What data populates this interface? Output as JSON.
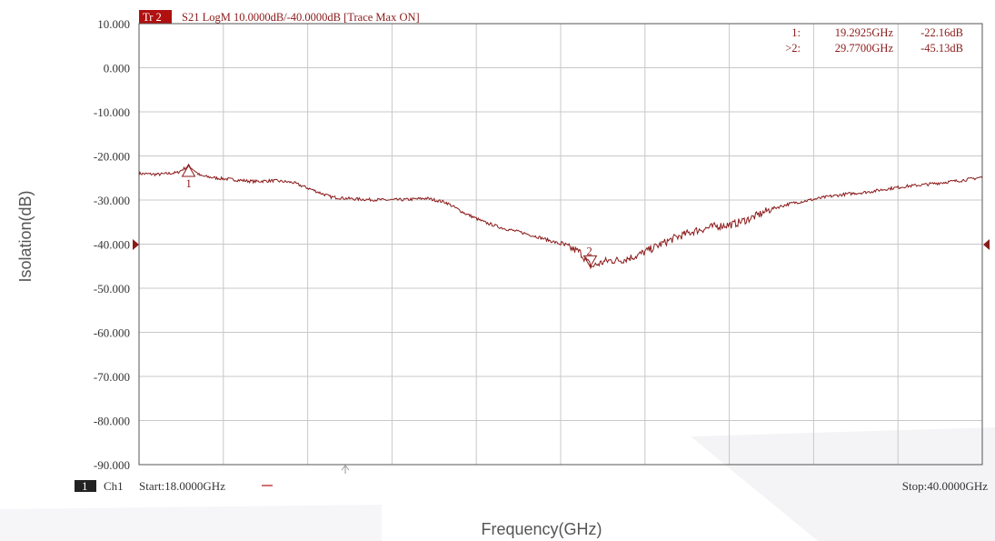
{
  "header": {
    "tr_badge": "Tr 2",
    "trace_info": "S21 LogM 10.0000dB/-40.0000dB  [Trace Max ON]"
  },
  "markers": [
    {
      "label": "1:",
      "freq": "19.2925GHz",
      "value": "-22.16dB"
    },
    {
      "label": ">2:",
      "freq": "29.7700GHz",
      "value": "-45.13dB"
    }
  ],
  "footer": {
    "ch_badge": "1",
    "ch_label": "Ch1",
    "start": "Start:18.0000GHz",
    "stop": "Stop:40.0000GHz"
  },
  "marker_tags": [
    "1",
    "2"
  ],
  "colors": {
    "trace": "#8b1a1a",
    "grid": "#c8c8c8",
    "badge": "#b01010",
    "frame": "#555555"
  },
  "chart_data": {
    "type": "line",
    "title": "",
    "xlabel": "Frequency(GHz)",
    "ylabel": "Isolation(dB)",
    "xlim": [
      18.0,
      40.0
    ],
    "ylim": [
      -90,
      10
    ],
    "ytick_labels": [
      "10.000",
      "0.000",
      "-10.000",
      "-20.000",
      "-30.000",
      "-40.000",
      "-50.000",
      "-60.000",
      "-70.000",
      "-80.000",
      "-90.000"
    ],
    "grid": true,
    "series": [
      {
        "x": [
          18.0,
          18.5,
          19.0,
          19.3,
          19.6,
          20.0,
          20.5,
          21.0,
          21.5,
          22.0,
          22.5,
          23.0,
          23.5,
          24.0,
          24.5,
          25.0,
          25.5,
          26.0,
          26.5,
          27.0,
          27.5,
          28.0,
          28.5,
          29.0,
          29.5,
          29.8,
          30.2,
          30.6,
          31.0,
          31.5,
          32.0,
          32.5,
          33.0,
          33.5,
          34.0,
          34.5,
          35.0,
          35.5,
          36.0,
          36.5,
          37.0,
          37.5,
          38.0,
          38.5,
          39.0,
          39.5,
          40.0
        ],
        "values": [
          -24.0,
          -24.2,
          -23.8,
          -22.2,
          -24.5,
          -25.0,
          -25.4,
          -25.8,
          -25.6,
          -26.0,
          -27.6,
          -29.3,
          -29.7,
          -29.9,
          -30.0,
          -29.9,
          -29.6,
          -30.5,
          -33.0,
          -35.0,
          -36.4,
          -37.4,
          -38.6,
          -40.0,
          -41.8,
          -45.1,
          -43.8,
          -43.6,
          -42.6,
          -40.5,
          -38.5,
          -37.0,
          -36.0,
          -35.5,
          -34.0,
          -32.0,
          -30.8,
          -30.0,
          -29.2,
          -28.6,
          -28.2,
          -27.5,
          -26.9,
          -26.5,
          -26.0,
          -25.5,
          -24.8
        ]
      }
    ],
    "markers": [
      {
        "id": "1",
        "x": 19.2925,
        "y": -22.16,
        "style": "up-triangle"
      },
      {
        "id": "2",
        "x": 29.77,
        "y": -45.13,
        "style": "down-triangle"
      }
    ]
  }
}
